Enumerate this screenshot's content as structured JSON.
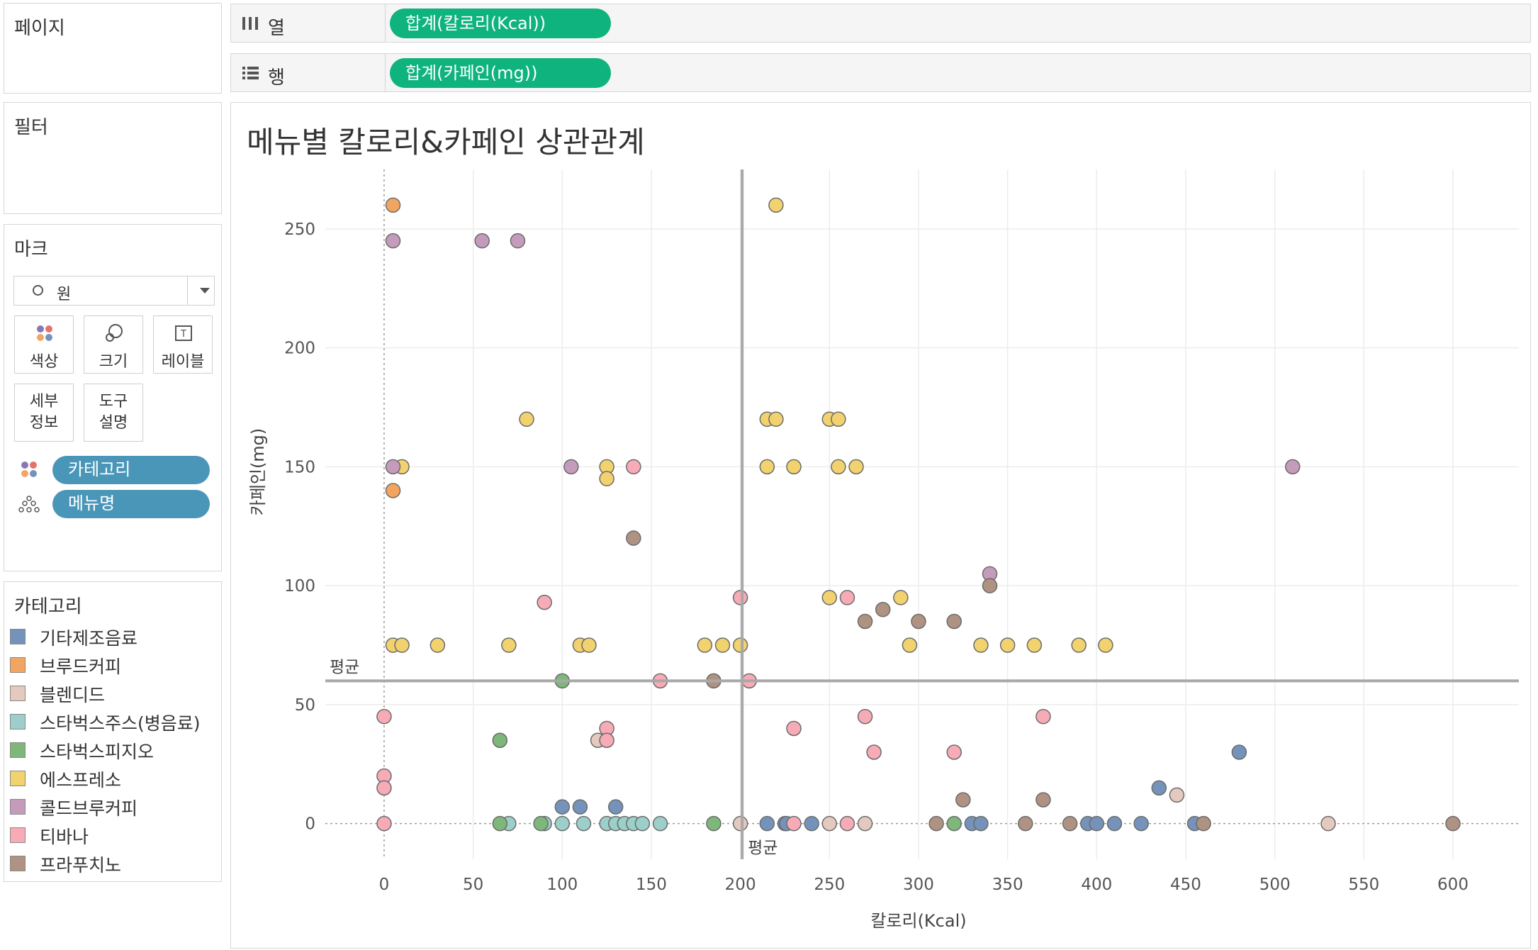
{
  "sidebar": {
    "pages_title": "페이지",
    "filters_title": "필터",
    "marks": {
      "title": "마크",
      "mark_type": "원",
      "buttons": {
        "color": "색상",
        "size": "크기",
        "label": "레이블",
        "detail": "세부\n정보",
        "tooltip": "도구\n설명"
      },
      "pills": {
        "color_field": "카테고리",
        "detail_field": "메뉴명"
      }
    },
    "legend": {
      "title": "카테고리",
      "items": [
        {
          "label": "기타제조음료",
          "color": "#7593ba"
        },
        {
          "label": "브루드커피",
          "color": "#f2a560"
        },
        {
          "label": "블렌디드",
          "color": "#e3c9be"
        },
        {
          "label": "스타벅스주스(병음료)",
          "color": "#9ccfca"
        },
        {
          "label": "스타벅스피지오",
          "color": "#7eb77a"
        },
        {
          "label": "에스프레소",
          "color": "#f1d26e"
        },
        {
          "label": "콜드브루커피",
          "color": "#c59bbb"
        },
        {
          "label": "티바나",
          "color": "#f7abb6"
        },
        {
          "label": "프라푸치노",
          "color": "#b09282"
        }
      ]
    }
  },
  "shelves": {
    "columns": {
      "label": "열",
      "pill": "합계(칼로리(Kcal))"
    },
    "rows": {
      "label": "행",
      "pill": "합계(카페인(mg))"
    }
  },
  "colors": {
    "accent_green": "#0fb37e",
    "pill_blue": "#4a96b8"
  },
  "chart_data": {
    "type": "scatter",
    "title": "메뉴별 칼로리&카페인 상관관계",
    "xlabel": "칼로리(Kcal)",
    "ylabel": "카페인(mg)",
    "xlim": [
      -33,
      637
    ],
    "ylim": [
      -15,
      275
    ],
    "x_ticks": [
      0,
      50,
      100,
      150,
      200,
      250,
      300,
      350,
      400,
      450,
      500,
      550,
      600
    ],
    "y_ticks": [
      0,
      50,
      100,
      150,
      200,
      250
    ],
    "grid": true,
    "reference_lines": [
      {
        "axis": "x",
        "value": 201,
        "label": "평균"
      },
      {
        "axis": "y",
        "value": 60,
        "label": "평균"
      }
    ],
    "series": [
      {
        "category": "기타제조음료",
        "points": [
          [
            100,
            7
          ],
          [
            110,
            7
          ],
          [
            130,
            7
          ],
          [
            215,
            0
          ],
          [
            225,
            0
          ],
          [
            226,
            0
          ],
          [
            240,
            0
          ],
          [
            330,
            0
          ],
          [
            335,
            0
          ],
          [
            395,
            0
          ],
          [
            400,
            0
          ],
          [
            410,
            0
          ],
          [
            425,
            0
          ],
          [
            435,
            15
          ],
          [
            455,
            0
          ],
          [
            480,
            30
          ]
        ]
      },
      {
        "category": "브루드커피",
        "points": [
          [
            5,
            260
          ],
          [
            5,
            140
          ]
        ]
      },
      {
        "category": "블렌디드",
        "points": [
          [
            120,
            35
          ],
          [
            200,
            0
          ],
          [
            250,
            0
          ],
          [
            270,
            0
          ],
          [
            445,
            12
          ],
          [
            530,
            0
          ]
        ]
      },
      {
        "category": "스타벅스주스(병음료)",
        "points": [
          [
            70,
            0
          ],
          [
            90,
            0
          ],
          [
            100,
            0
          ],
          [
            112,
            0
          ],
          [
            125,
            0
          ],
          [
            130,
            0
          ],
          [
            135,
            0
          ],
          [
            140,
            0
          ],
          [
            145,
            0
          ],
          [
            155,
            0
          ]
        ]
      },
      {
        "category": "스타벅스피지오",
        "points": [
          [
            65,
            35
          ],
          [
            65,
            0
          ],
          [
            100,
            60
          ],
          [
            88,
            0
          ],
          [
            185,
            0
          ],
          [
            320,
            0
          ]
        ]
      },
      {
        "category": "에스프레소",
        "points": [
          [
            220,
            260
          ],
          [
            80,
            170
          ],
          [
            215,
            170
          ],
          [
            220,
            170
          ],
          [
            250,
            170
          ],
          [
            255,
            170
          ],
          [
            10,
            150
          ],
          [
            125,
            150
          ],
          [
            125,
            145
          ],
          [
            215,
            150
          ],
          [
            230,
            150
          ],
          [
            255,
            150
          ],
          [
            265,
            150
          ],
          [
            290,
            95
          ],
          [
            250,
            95
          ],
          [
            5,
            75
          ],
          [
            10,
            75
          ],
          [
            30,
            75
          ],
          [
            70,
            75
          ],
          [
            110,
            75
          ],
          [
            115,
            75
          ],
          [
            180,
            75
          ],
          [
            190,
            75
          ],
          [
            200,
            75
          ],
          [
            295,
            75
          ],
          [
            335,
            75
          ],
          [
            350,
            75
          ],
          [
            365,
            75
          ],
          [
            390,
            75
          ],
          [
            405,
            75
          ]
        ]
      },
      {
        "category": "콜드브루커피",
        "points": [
          [
            5,
            245
          ],
          [
            55,
            245
          ],
          [
            75,
            245
          ],
          [
            5,
            150
          ],
          [
            105,
            150
          ],
          [
            510,
            150
          ],
          [
            340,
            105
          ]
        ]
      },
      {
        "category": "티바나",
        "points": [
          [
            140,
            150
          ],
          [
            90,
            93
          ],
          [
            200,
            95
          ],
          [
            260,
            95
          ],
          [
            155,
            60
          ],
          [
            205,
            60
          ],
          [
            0,
            45
          ],
          [
            125,
            40
          ],
          [
            125,
            35
          ],
          [
            230,
            40
          ],
          [
            270,
            45
          ],
          [
            275,
            30
          ],
          [
            320,
            30
          ],
          [
            370,
            45
          ],
          [
            0,
            20
          ],
          [
            0,
            15
          ],
          [
            0,
            0
          ],
          [
            230,
            0
          ],
          [
            260,
            0
          ]
        ]
      },
      {
        "category": "프라푸치노",
        "points": [
          [
            140,
            120
          ],
          [
            185,
            60
          ],
          [
            270,
            85
          ],
          [
            280,
            90
          ],
          [
            300,
            85
          ],
          [
            320,
            85
          ],
          [
            340,
            100
          ],
          [
            325,
            10
          ],
          [
            370,
            10
          ],
          [
            310,
            0
          ],
          [
            360,
            0
          ],
          [
            385,
            0
          ],
          [
            460,
            0
          ],
          [
            600,
            0
          ]
        ]
      }
    ]
  }
}
